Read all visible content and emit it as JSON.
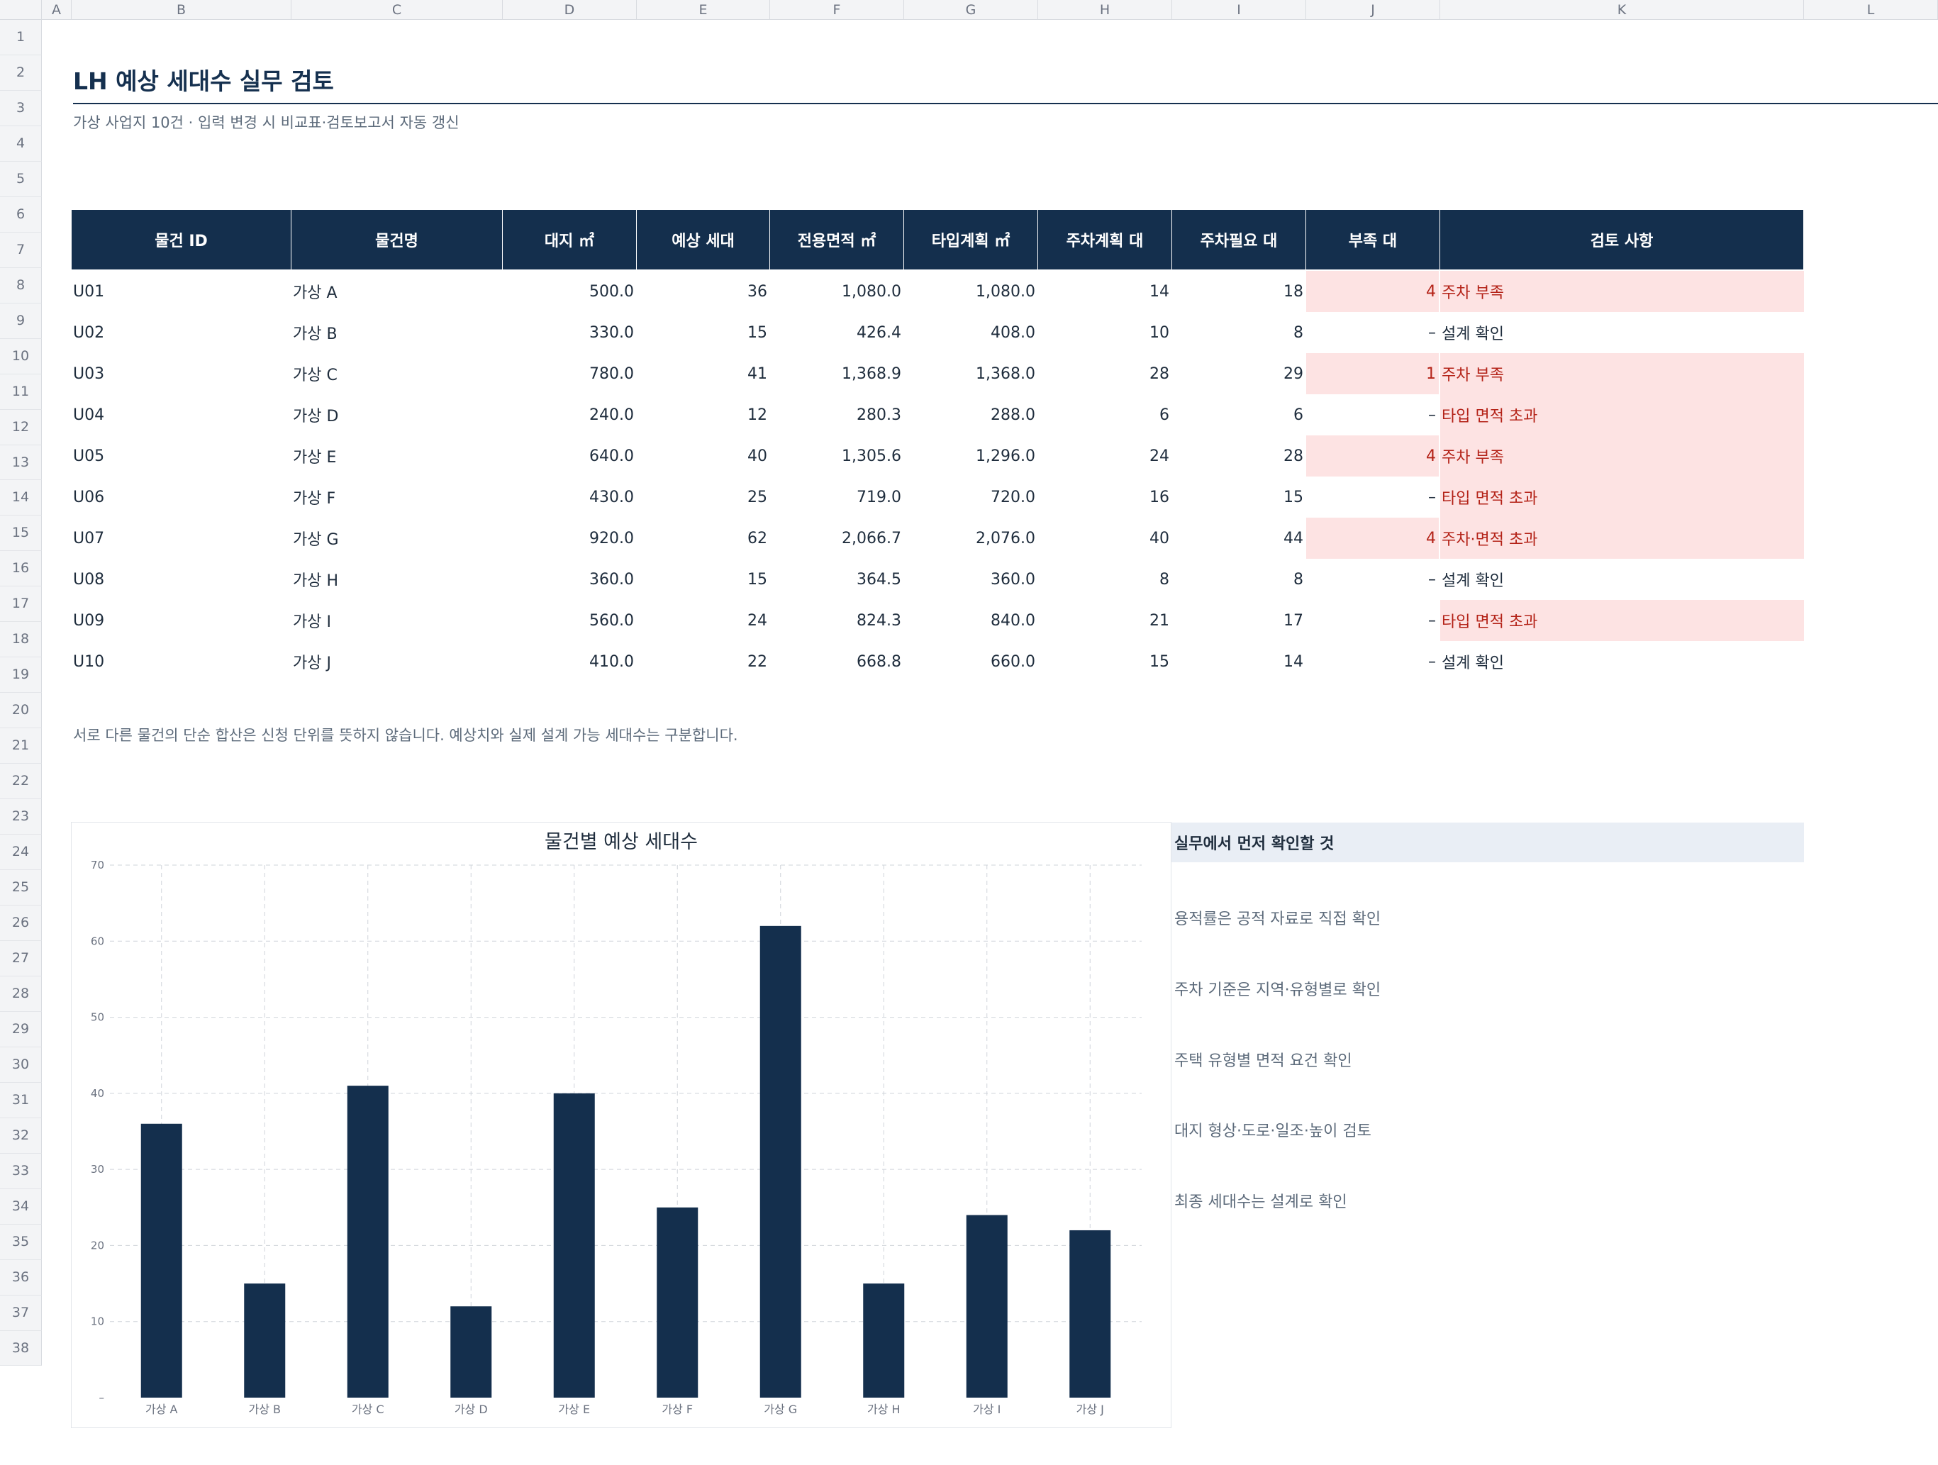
{
  "sheet": {
    "columns": [
      "A",
      "B",
      "C",
      "D",
      "E",
      "F",
      "G",
      "H",
      "I",
      "J",
      "K",
      "L"
    ],
    "rows": [
      "1",
      "2",
      "3",
      "4",
      "5",
      "6",
      "7",
      "8",
      "9",
      "10",
      "11",
      "12",
      "13",
      "14",
      "15",
      "16",
      "17",
      "18",
      "19",
      "20",
      "21",
      "22",
      "23",
      "24",
      "25",
      "26",
      "27",
      "28",
      "29",
      "30",
      "31",
      "32",
      "33",
      "34",
      "35",
      "36",
      "37",
      "38"
    ]
  },
  "header": {
    "title": "LH 예상 세대수 실무 검토",
    "subtitle": "가상 사업지 10건 · 입력 변경 시 비교표·검토보고서 자동 갱신"
  },
  "table": {
    "headers": [
      "물건 ID",
      "물건명",
      "대지 ㎡",
      "예상 세대",
      "전용면적 ㎡",
      "타입계획 ㎡",
      "주차계획 대",
      "주차필요 대",
      "부족 대",
      "검토 사항"
    ],
    "rows": [
      {
        "id": "U01",
        "name": "가상 A",
        "site": "500.0",
        "units": "36",
        "area": "1,080.0",
        "plan": "1,080.0",
        "park_plan": "14",
        "park_need": "18",
        "shortage": "4",
        "review": "주차 부족",
        "short_flag": true,
        "review_flag": true
      },
      {
        "id": "U02",
        "name": "가상 B",
        "site": "330.0",
        "units": "15",
        "area": "426.4",
        "plan": "408.0",
        "park_plan": "10",
        "park_need": "8",
        "shortage": "–",
        "review": "설계 확인",
        "short_flag": false,
        "review_flag": false
      },
      {
        "id": "U03",
        "name": "가상 C",
        "site": "780.0",
        "units": "41",
        "area": "1,368.9",
        "plan": "1,368.0",
        "park_plan": "28",
        "park_need": "29",
        "shortage": "1",
        "review": "주차 부족",
        "short_flag": true,
        "review_flag": true
      },
      {
        "id": "U04",
        "name": "가상 D",
        "site": "240.0",
        "units": "12",
        "area": "280.3",
        "plan": "288.0",
        "park_plan": "6",
        "park_need": "6",
        "shortage": "–",
        "review": "타입 면적 초과",
        "short_flag": false,
        "review_flag": true
      },
      {
        "id": "U05",
        "name": "가상 E",
        "site": "640.0",
        "units": "40",
        "area": "1,305.6",
        "plan": "1,296.0",
        "park_plan": "24",
        "park_need": "28",
        "shortage": "4",
        "review": "주차 부족",
        "short_flag": true,
        "review_flag": true
      },
      {
        "id": "U06",
        "name": "가상 F",
        "site": "430.0",
        "units": "25",
        "area": "719.0",
        "plan": "720.0",
        "park_plan": "16",
        "park_need": "15",
        "shortage": "–",
        "review": "타입 면적 초과",
        "short_flag": false,
        "review_flag": true
      },
      {
        "id": "U07",
        "name": "가상 G",
        "site": "920.0",
        "units": "62",
        "area": "2,066.7",
        "plan": "2,076.0",
        "park_plan": "40",
        "park_need": "44",
        "shortage": "4",
        "review": "주차·면적 초과",
        "short_flag": true,
        "review_flag": true
      },
      {
        "id": "U08",
        "name": "가상 H",
        "site": "360.0",
        "units": "15",
        "area": "364.5",
        "plan": "360.0",
        "park_plan": "8",
        "park_need": "8",
        "shortage": "–",
        "review": "설계 확인",
        "short_flag": false,
        "review_flag": false
      },
      {
        "id": "U09",
        "name": "가상 I",
        "site": "560.0",
        "units": "24",
        "area": "824.3",
        "plan": "840.0",
        "park_plan": "21",
        "park_need": "17",
        "shortage": "–",
        "review": "타입 면적 초과",
        "short_flag": false,
        "review_flag": true
      },
      {
        "id": "U10",
        "name": "가상 J",
        "site": "410.0",
        "units": "22",
        "area": "668.8",
        "plan": "660.0",
        "park_plan": "15",
        "park_need": "14",
        "shortage": "–",
        "review": "설계 확인",
        "short_flag": false,
        "review_flag": false
      }
    ]
  },
  "note": "서로 다른 물건의 단순 합산은 신청 단위를 뜻하지 않습니다. 예상치와 실제 설계 가능 세대수는 구분합니다.",
  "checklist": {
    "title": "실무에서 먼저 확인할 것",
    "items": [
      "용적률은 공적 자료로 직접 확인",
      "주차 기준은 지역·유형별로 확인",
      "주택 유형별 면적 요건 확인",
      "대지 형상·도로·일조·높이 검토",
      "최종 세대수는 설계로 확인"
    ]
  },
  "colors": {
    "navy": "#142f4d",
    "pink": "#fde3e3",
    "alert_red": "#b42318"
  },
  "chart_data": {
    "type": "bar",
    "title": "물건별 예상 세대수",
    "categories": [
      "가상 A",
      "가상 B",
      "가상 C",
      "가상 D",
      "가상 E",
      "가상 F",
      "가상 G",
      "가상 H",
      "가상 I",
      "가상 J"
    ],
    "values": [
      36,
      15,
      41,
      12,
      40,
      25,
      62,
      15,
      24,
      22
    ],
    "yticks": [
      "–",
      "10",
      "20",
      "30",
      "40",
      "50",
      "60",
      "70"
    ],
    "ylim": [
      0,
      70
    ],
    "grid": true,
    "legend": "none",
    "bar_color": "#142f4d"
  }
}
